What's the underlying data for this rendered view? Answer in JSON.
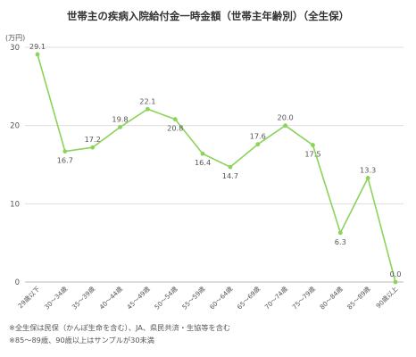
{
  "chart_data": {
    "type": "line",
    "title": "世帯主の疾病入院給付金一時金額（世帯主年齢別）（全生保）",
    "y_unit": "(万円)",
    "categories": [
      "29歳以下",
      "30～34歳",
      "35～39歳",
      "40～44歳",
      "45～49歳",
      "50～54歳",
      "55～59歳",
      "60～64歳",
      "65～69歳",
      "70～74歳",
      "75～79歳",
      "80～84歳",
      "85～89歳",
      "90歳以上"
    ],
    "values": [
      29.1,
      16.7,
      17.2,
      19.8,
      22.1,
      20.8,
      16.4,
      14.7,
      17.6,
      20.0,
      17.5,
      6.3,
      13.3,
      0.0
    ],
    "value_labels": [
      "29.1",
      "16.7",
      "17.2",
      "19.8",
      "22.1",
      "20.8",
      "16.4",
      "14.7",
      "17.6",
      "20.0",
      "17.5",
      "6.3",
      "13.3",
      "0.0"
    ],
    "ylim": [
      0,
      30
    ],
    "yticks": [
      0,
      10,
      20,
      30
    ],
    "grid": "horizontal",
    "line_color": "#8cd35a"
  },
  "notes": [
    "※全生保は民保（かんぽ生命を含む）、JA、県民共済・生協等を含む",
    "※85～89歳、90歳以上はサンプルが30未満"
  ]
}
